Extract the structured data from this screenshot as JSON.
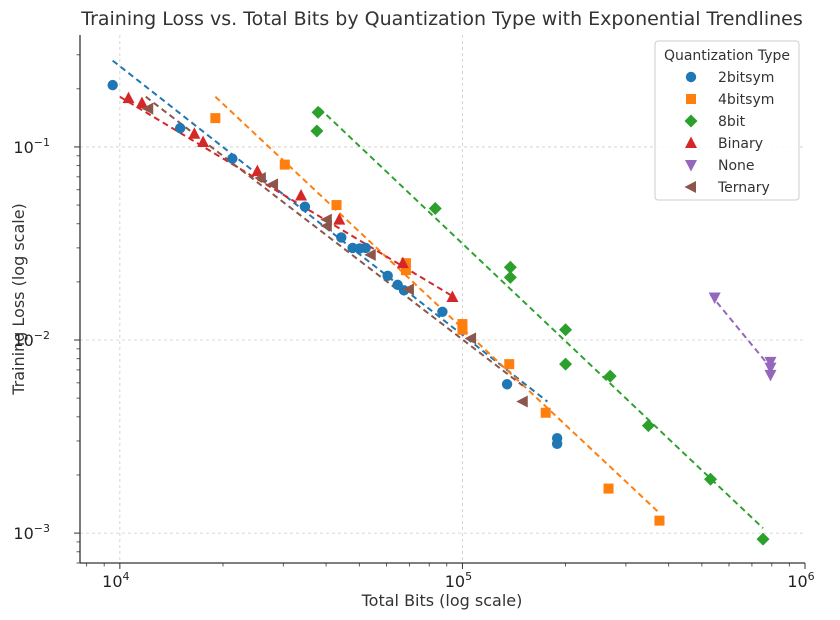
{
  "chart_data": {
    "type": "scatter",
    "title": "Training Loss vs. Total Bits by Quantization Type with Exponential Trendlines",
    "xlabel": "Total Bits (log scale)",
    "ylabel": "Training Loss (log scale)",
    "xscale": "log",
    "yscale": "log",
    "xlim": [
      7650,
      1000000
    ],
    "ylim": [
      0.0007,
      0.38
    ],
    "grid": true,
    "x_ticks": [
      {
        "value": 10000,
        "base": "10",
        "exp": "4"
      },
      {
        "value": 100000,
        "base": "10",
        "exp": "5"
      },
      {
        "value": 1000000,
        "base": "10",
        "exp": "6"
      }
    ],
    "y_ticks": [
      {
        "value": 0.1,
        "base": "10",
        "exp": "−1"
      },
      {
        "value": 0.01,
        "base": "10",
        "exp": "−2"
      },
      {
        "value": 0.001,
        "base": "10",
        "exp": "−3"
      }
    ],
    "legend": {
      "title": "Quantization Type",
      "position": "top-right"
    },
    "series": [
      {
        "name": "2bitsym",
        "color": "#1f77b4",
        "marker": "circle",
        "points": [
          [
            9530,
            0.209
          ],
          [
            15000,
            0.125
          ],
          [
            21300,
            0.087
          ],
          [
            34700,
            0.049
          ],
          [
            44300,
            0.034
          ],
          [
            47800,
            0.03
          ],
          [
            50100,
            0.0298
          ],
          [
            52200,
            0.03
          ],
          [
            60500,
            0.0215
          ],
          [
            64700,
            0.0193
          ],
          [
            67500,
            0.0181
          ],
          [
            87400,
            0.014
          ],
          [
            135000,
            0.0059
          ],
          [
            189000,
            0.0031
          ],
          [
            189000,
            0.0029
          ]
        ],
        "trend": [
          [
            9530,
            0.28
          ],
          [
            177000,
            0.0048
          ]
        ]
      },
      {
        "name": "4bitsym",
        "color": "#ff7f0e",
        "marker": "square",
        "points": [
          [
            19000,
            0.141
          ],
          [
            30300,
            0.081
          ],
          [
            42900,
            0.05
          ],
          [
            68400,
            0.025
          ],
          [
            68400,
            0.023
          ],
          [
            100000,
            0.0121
          ],
          [
            100000,
            0.0113
          ],
          [
            137000,
            0.0075
          ],
          [
            175000,
            0.0042
          ],
          [
            267000,
            0.0017
          ],
          [
            376000,
            0.00116
          ]
        ],
        "trend": [
          [
            19000,
            0.182
          ],
          [
            376000,
            0.00127
          ]
        ]
      },
      {
        "name": "8bit",
        "color": "#2ca02c",
        "marker": "diamond",
        "points": [
          [
            37900,
            0.151
          ],
          [
            37600,
            0.121
          ],
          [
            83300,
            0.048
          ],
          [
            138000,
            0.0238
          ],
          [
            138000,
            0.0211
          ],
          [
            200000,
            0.0113
          ],
          [
            200000,
            0.0075
          ],
          [
            270000,
            0.0065
          ],
          [
            349000,
            0.0036
          ],
          [
            530000,
            0.0019
          ],
          [
            754000,
            0.00093
          ]
        ],
        "trend": [
          [
            38200,
            0.159
          ],
          [
            754000,
            0.00106
          ]
        ]
      },
      {
        "name": "Binary",
        "color": "#d62728",
        "marker": "triangle-up",
        "points": [
          [
            10600,
            0.179
          ],
          [
            11600,
            0.169
          ],
          [
            16500,
            0.117
          ],
          [
            17500,
            0.106
          ],
          [
            25200,
            0.075
          ],
          [
            33800,
            0.056
          ],
          [
            43700,
            0.042
          ],
          [
            67000,
            0.025
          ],
          [
            93500,
            0.0167
          ]
        ],
        "trend": [
          [
            10000,
            0.182
          ],
          [
            94500,
            0.0167
          ]
        ]
      },
      {
        "name": "None",
        "color": "#9467bd",
        "marker": "triangle-down",
        "points": [
          [
            545000,
            0.0166
          ],
          [
            793000,
            0.0077
          ],
          [
            793000,
            0.0072
          ],
          [
            793000,
            0.0066
          ]
        ],
        "trend": [
          [
            530000,
            0.0172
          ],
          [
            793000,
            0.0072
          ]
        ]
      },
      {
        "name": "Ternary",
        "color": "#8c564b",
        "marker": "triangle-left",
        "points": [
          [
            12100,
            0.158
          ],
          [
            25800,
            0.069
          ],
          [
            28000,
            0.064
          ],
          [
            40200,
            0.042
          ],
          [
            40200,
            0.039
          ],
          [
            54000,
            0.0276
          ],
          [
            69800,
            0.0183
          ],
          [
            106000,
            0.0102
          ],
          [
            150000,
            0.0048
          ]
        ],
        "trend": [
          [
            11900,
            0.182
          ],
          [
            150000,
            0.0058
          ]
        ]
      }
    ]
  }
}
